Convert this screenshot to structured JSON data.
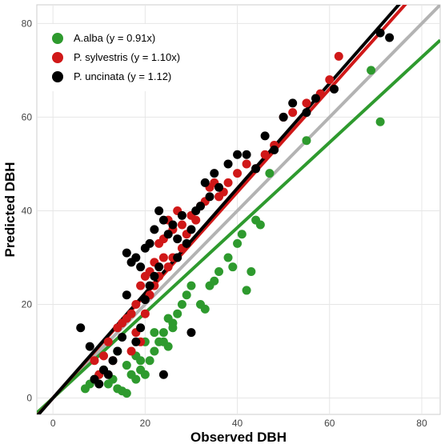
{
  "chart_data": {
    "type": "scatter",
    "xlabel": "Observed DBH",
    "ylabel": "Predicted DBH",
    "xlim": [
      -3.5,
      84
    ],
    "ylim": [
      -3.5,
      84
    ],
    "xticks": [
      0,
      20,
      40,
      60,
      80
    ],
    "yticks": [
      0,
      20,
      40,
      60,
      80
    ],
    "grid": true,
    "legend_position": "top-left",
    "identity_line": {
      "slope": 1,
      "color": "#b3b3b3"
    },
    "series": [
      {
        "name": "A.alba (y = 0.91x)",
        "color": "#2e9a2e",
        "slope": 0.91,
        "points": [
          [
            7,
            2
          ],
          [
            8,
            3
          ],
          [
            9,
            4
          ],
          [
            10,
            5
          ],
          [
            11,
            6
          ],
          [
            12,
            3
          ],
          [
            13,
            4
          ],
          [
            14,
            2
          ],
          [
            15,
            1.5
          ],
          [
            16,
            1
          ],
          [
            17,
            5
          ],
          [
            18,
            4
          ],
          [
            19,
            6
          ],
          [
            20,
            5
          ],
          [
            21,
            8
          ],
          [
            22,
            10
          ],
          [
            23,
            12
          ],
          [
            24,
            14
          ],
          [
            25,
            11
          ],
          [
            26,
            15
          ],
          [
            27,
            18
          ],
          [
            28,
            20
          ],
          [
            29,
            22
          ],
          [
            30,
            24
          ],
          [
            32,
            20
          ],
          [
            33,
            19
          ],
          [
            34,
            24
          ],
          [
            35,
            25
          ],
          [
            36,
            27
          ],
          [
            38,
            30
          ],
          [
            39,
            28
          ],
          [
            40,
            33
          ],
          [
            41,
            35
          ],
          [
            42,
            23
          ],
          [
            43,
            27
          ],
          [
            44,
            38
          ],
          [
            45,
            37
          ],
          [
            47,
            48
          ],
          [
            55,
            55
          ],
          [
            69,
            70
          ],
          [
            71,
            59
          ],
          [
            18,
            9
          ],
          [
            19,
            8
          ],
          [
            20,
            12
          ],
          [
            14,
            10
          ],
          [
            16,
            7
          ],
          [
            22,
            14
          ],
          [
            24,
            12
          ],
          [
            25,
            17
          ],
          [
            26,
            16
          ]
        ]
      },
      {
        "name": "P. sylvestris (y = 1.10x)",
        "color": "#d01818",
        "slope": 1.1,
        "points": [
          [
            9,
            8
          ],
          [
            10,
            5
          ],
          [
            11,
            9
          ],
          [
            12,
            12
          ],
          [
            13,
            8
          ],
          [
            14,
            15
          ],
          [
            15,
            16
          ],
          [
            16,
            17
          ],
          [
            17,
            18
          ],
          [
            18,
            20
          ],
          [
            19,
            24
          ],
          [
            20,
            26
          ],
          [
            21,
            27
          ],
          [
            22,
            29
          ],
          [
            23,
            33
          ],
          [
            24,
            34
          ],
          [
            25,
            38
          ],
          [
            26,
            36
          ],
          [
            27,
            40
          ],
          [
            28,
            37
          ],
          [
            29,
            35
          ],
          [
            30,
            39
          ],
          [
            31,
            38
          ],
          [
            32,
            41
          ],
          [
            33,
            42
          ],
          [
            34,
            45
          ],
          [
            35,
            46
          ],
          [
            36,
            43
          ],
          [
            37,
            44
          ],
          [
            38,
            46
          ],
          [
            40,
            48
          ],
          [
            42,
            50
          ],
          [
            44,
            49
          ],
          [
            46,
            52
          ],
          [
            48,
            54
          ],
          [
            50,
            60
          ],
          [
            52,
            61
          ],
          [
            55,
            63
          ],
          [
            58,
            65
          ],
          [
            60,
            68
          ],
          [
            62,
            73
          ],
          [
            17,
            10
          ],
          [
            18,
            14
          ],
          [
            19,
            12
          ],
          [
            20,
            18
          ],
          [
            21,
            22
          ],
          [
            22,
            24
          ],
          [
            23,
            26
          ],
          [
            24,
            30
          ],
          [
            25,
            28
          ],
          [
            26,
            30
          ],
          [
            28,
            32
          ]
        ]
      },
      {
        "name": "P. uncinata (y = 1.12)",
        "color": "#000000",
        "slope": 1.12,
        "points": [
          [
            6,
            15
          ],
          [
            8,
            11
          ],
          [
            9,
            4
          ],
          [
            10,
            3
          ],
          [
            11,
            6
          ],
          [
            12,
            5
          ],
          [
            13,
            8
          ],
          [
            14,
            10
          ],
          [
            15,
            13
          ],
          [
            16,
            31
          ],
          [
            17,
            29
          ],
          [
            18,
            30
          ],
          [
            19,
            28
          ],
          [
            20,
            32
          ],
          [
            21,
            33
          ],
          [
            22,
            36
          ],
          [
            23,
            40
          ],
          [
            24,
            38
          ],
          [
            25,
            35
          ],
          [
            26,
            37
          ],
          [
            27,
            34
          ],
          [
            28,
            39
          ],
          [
            29,
            33
          ],
          [
            30,
            36
          ],
          [
            31,
            40
          ],
          [
            32,
            41
          ],
          [
            33,
            46
          ],
          [
            34,
            43
          ],
          [
            35,
            48
          ],
          [
            36,
            45
          ],
          [
            38,
            50
          ],
          [
            40,
            52
          ],
          [
            42,
            52
          ],
          [
            44,
            49
          ],
          [
            46,
            56
          ],
          [
            48,
            53
          ],
          [
            50,
            60
          ],
          [
            52,
            63
          ],
          [
            55,
            61
          ],
          [
            57,
            64
          ],
          [
            61,
            66
          ],
          [
            71,
            78
          ],
          [
            73,
            77
          ],
          [
            24,
            5
          ],
          [
            30,
            14
          ],
          [
            20,
            21
          ],
          [
            21,
            24
          ],
          [
            22,
            26
          ],
          [
            23,
            28
          ],
          [
            27,
            30
          ],
          [
            18,
            12
          ],
          [
            19,
            15
          ],
          [
            16,
            22
          ]
        ]
      }
    ]
  }
}
